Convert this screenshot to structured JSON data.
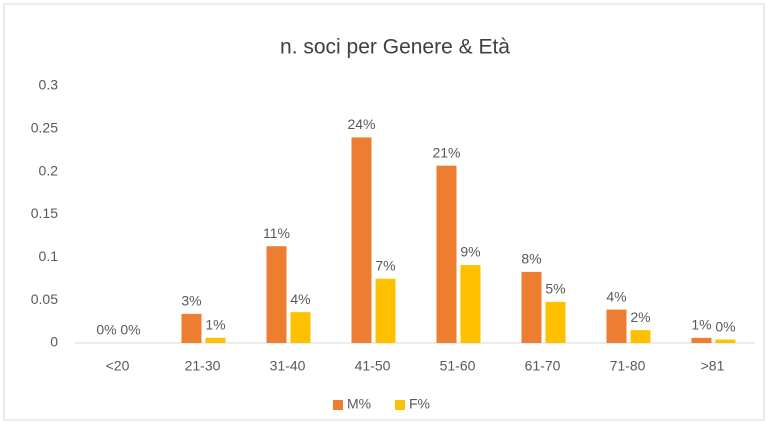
{
  "chart_data": {
    "type": "bar",
    "title": "n. soci per Genere & Età",
    "categories": [
      "<20",
      "21-30",
      "31-40",
      "41-50",
      "51-60",
      "61-70",
      "71-80",
      ">81"
    ],
    "series": [
      {
        "name": "M%",
        "color": "#ed7d31",
        "values": [
          0,
          0.034,
          0.113,
          0.24,
          0.207,
          0.083,
          0.039,
          0.006
        ],
        "value_labels": [
          "0%",
          "3%",
          "11%",
          "24%",
          "21%",
          "8%",
          "4%",
          "1%"
        ]
      },
      {
        "name": "F%",
        "color": "#ffc000",
        "values": [
          0,
          0.006,
          0.036,
          0.075,
          0.091,
          0.048,
          0.015,
          0.004
        ],
        "value_labels": [
          "0%",
          "1%",
          "4%",
          "7%",
          "9%",
          "5%",
          "2%",
          "0%"
        ]
      }
    ],
    "ylim": [
      0,
      0.3
    ],
    "yticks": [
      0,
      0.05,
      0.1,
      0.15,
      0.2,
      0.25,
      0.3
    ],
    "grid": false,
    "legend": "bottom"
  }
}
